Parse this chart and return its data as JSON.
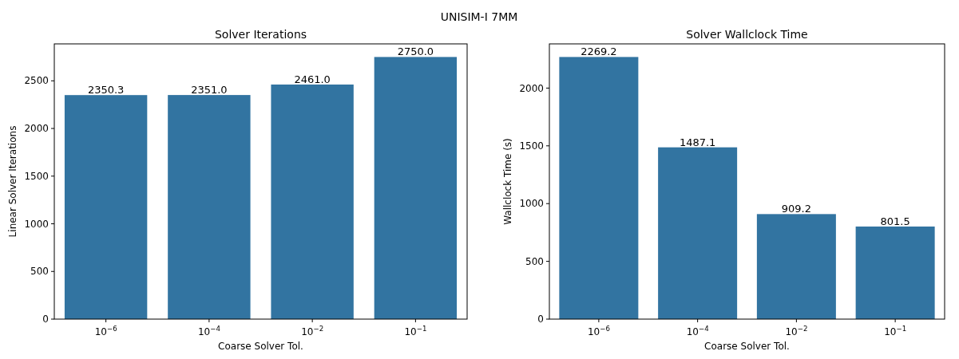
{
  "chart_data": [
    {
      "type": "bar",
      "title": "Solver Iterations",
      "annotations": [
        "UNISIM-I 7MM"
      ],
      "xlabel": "Coarse Solver Tol.",
      "ylabel": "Linear Solver Iterations",
      "categories": [
        "10$^{−6}$",
        "10$^{−4}$",
        "10$^{−2}$",
        "10$^{−1}$"
      ],
      "values": [
        2350.3,
        2351.0,
        2461.0,
        2750.0
      ],
      "value_labels": [
        "2350.3",
        "2351.0",
        "2461.0",
        "2750.0"
      ],
      "color": "#3274a1",
      "ylim": [
        0,
        2887.5
      ],
      "yticks": [
        0,
        500,
        1000,
        1500,
        2000,
        2500
      ],
      "grid": false
    },
    {
      "type": "bar",
      "title": "Solver Wallclock Time",
      "xlabel": "Coarse Solver Tol.",
      "ylabel": "Wallclock Time (s)",
      "categories": [
        "10$^{−6}$",
        "10$^{−4}$",
        "10$^{−2}$",
        "10$^{−1}$"
      ],
      "values": [
        2269.2,
        1487.1,
        909.2,
        801.5
      ],
      "value_labels": [
        "2269.2",
        "1487.1",
        "909.2",
        "801.5"
      ],
      "color": "#3274a1",
      "ylim": [
        0,
        2382.66
      ],
      "yticks": [
        0,
        500,
        1000,
        1500,
        2000
      ],
      "grid": false
    }
  ]
}
